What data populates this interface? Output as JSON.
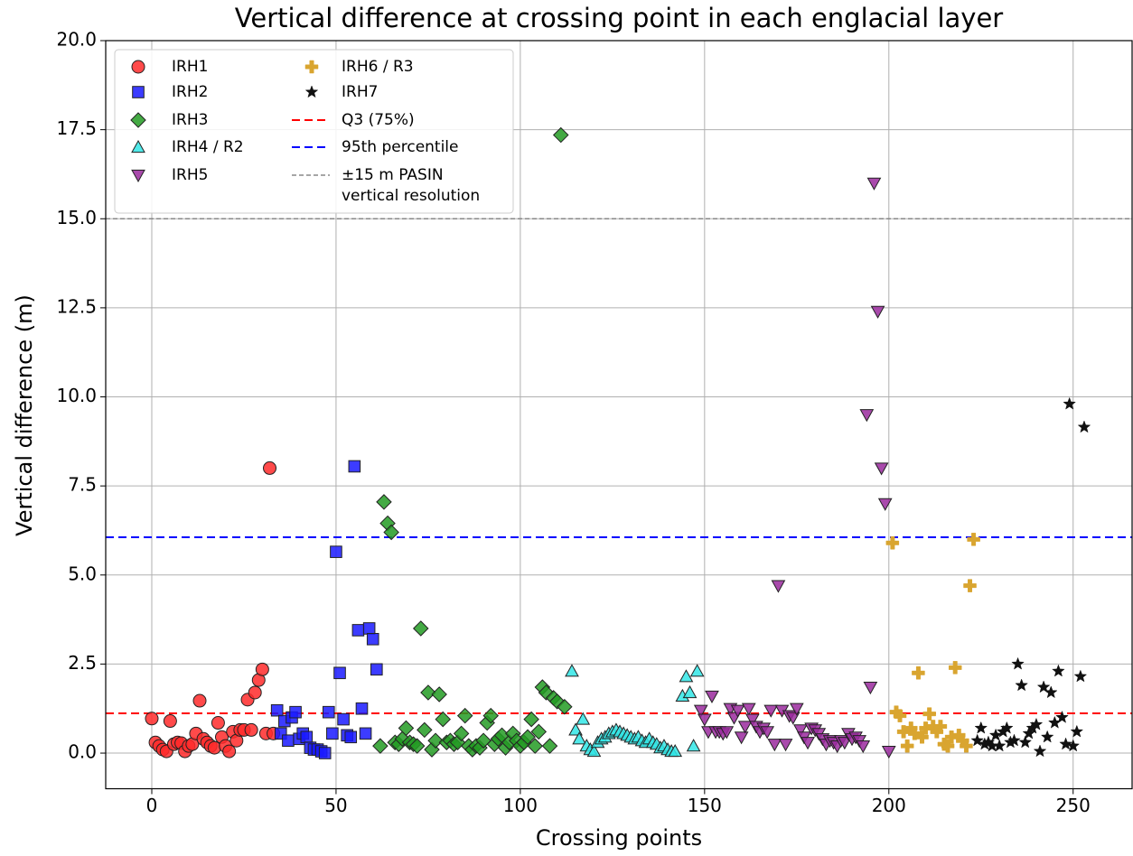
{
  "chart_data": {
    "type": "scatter",
    "title": "Vertical difference at crossing point in each englacial layer",
    "x_label": "Crossing points",
    "y_label": "Vertical difference (m)",
    "xlim": [
      -12.5,
      266
    ],
    "ylim": [
      -1,
      20
    ],
    "xticks": [
      0,
      50,
      100,
      150,
      200,
      250
    ],
    "yticks": [
      {
        "value": 0,
        "label": "0.0"
      },
      2.5,
      {
        "value": 5,
        "label": "5.0"
      },
      7.5,
      {
        "value": 10,
        "label": "10.0"
      },
      12.5,
      {
        "value": 15,
        "label": "15.0"
      },
      17.5,
      {
        "value": 20,
        "label": "20.0"
      }
    ],
    "grid": true,
    "legend": "upper left",
    "series": [
      {
        "name": "IRH1",
        "color": "#ff2a2a",
        "marker": "circle",
        "x": [
          0,
          1,
          2,
          3,
          4,
          5,
          6,
          7,
          8,
          9,
          10,
          11,
          12,
          13,
          14,
          15,
          16,
          17,
          18,
          19,
          20,
          21,
          22,
          23,
          24,
          25,
          26,
          27,
          28,
          29,
          30,
          31,
          32,
          33
        ],
        "values": [
          0.97,
          0.3,
          0.2,
          0.1,
          0.05,
          0.9,
          0.25,
          0.3,
          0.28,
          0.05,
          0.2,
          0.25,
          0.55,
          1.47,
          0.4,
          0.3,
          0.2,
          0.15,
          0.85,
          0.45,
          0.2,
          0.05,
          0.6,
          0.35,
          0.65,
          0.65,
          1.5,
          0.65,
          1.7,
          2.05,
          2.35,
          0.55,
          8.0,
          0.55
        ]
      },
      {
        "name": "IRH2",
        "color": "#1a1aff",
        "marker": "square",
        "x": [
          34,
          35,
          36,
          37,
          38,
          39,
          40,
          41,
          42,
          43,
          44,
          45,
          46,
          47,
          48,
          49,
          50,
          51,
          52,
          53,
          54,
          55,
          56,
          57,
          58,
          59,
          60,
          61
        ],
        "values": [
          1.2,
          0.55,
          0.9,
          0.35,
          1.0,
          1.15,
          0.4,
          0.55,
          0.45,
          0.15,
          0.1,
          0.1,
          0.05,
          0.0,
          1.15,
          0.55,
          5.65,
          2.25,
          0.95,
          0.5,
          0.45,
          8.05,
          3.45,
          1.25,
          0.55,
          3.5,
          3.2,
          2.35
        ]
      },
      {
        "name": "IRH3",
        "color": "#239b23",
        "marker": "diamond",
        "x": [
          62,
          63,
          64,
          65,
          66,
          67,
          68,
          69,
          70,
          71,
          72,
          73,
          74,
          75,
          76,
          77,
          78,
          79,
          80,
          81,
          82,
          83,
          84,
          85,
          86,
          87,
          88,
          89,
          90,
          91,
          92,
          93,
          94,
          95,
          96,
          97,
          98,
          99,
          100,
          101,
          102,
          103,
          104,
          105,
          106,
          107,
          108,
          109,
          110,
          111,
          112
        ],
        "values": [
          0.2,
          7.05,
          6.45,
          6.2,
          0.3,
          0.25,
          0.4,
          0.7,
          0.3,
          0.25,
          0.2,
          3.5,
          0.65,
          1.7,
          0.1,
          0.35,
          1.65,
          0.95,
          0.3,
          0.35,
          0.25,
          0.3,
          0.55,
          1.05,
          0.2,
          0.1,
          0.2,
          0.15,
          0.35,
          0.85,
          1.05,
          0.25,
          0.4,
          0.5,
          0.15,
          0.3,
          0.55,
          0.35,
          0.2,
          0.3,
          0.45,
          0.95,
          0.2,
          0.6,
          1.85,
          1.7,
          0.2,
          1.55,
          1.45,
          17.35,
          1.3
        ]
      },
      {
        "name": "IRH4 / R2",
        "color": "#33e6e6",
        "marker": "triangle-up",
        "x": [
          114,
          115,
          116,
          117,
          118,
          119,
          120,
          121,
          122,
          123,
          124,
          125,
          126,
          127,
          128,
          129,
          130,
          131,
          132,
          133,
          134,
          135,
          136,
          137,
          138,
          139,
          140,
          141,
          142,
          144,
          145,
          146,
          147,
          148
        ],
        "values": [
          2.3,
          0.65,
          0.4,
          0.95,
          0.2,
          0.1,
          0.05,
          0.3,
          0.4,
          0.45,
          0.55,
          0.6,
          0.65,
          0.6,
          0.55,
          0.5,
          0.45,
          0.4,
          0.45,
          0.35,
          0.3,
          0.4,
          0.3,
          0.25,
          0.15,
          0.2,
          0.1,
          0.05,
          0.05,
          1.6,
          2.15,
          1.7,
          0.2,
          2.3
        ]
      },
      {
        "name": "IRH5",
        "color": "#9a2a9e",
        "marker": "triangle-down",
        "x": [
          149,
          150,
          151,
          152,
          153,
          154,
          155,
          156,
          157,
          158,
          159,
          160,
          161,
          162,
          163,
          164,
          165,
          166,
          167,
          168,
          169,
          170,
          171,
          172,
          173,
          174,
          175,
          176,
          177,
          178,
          179,
          180,
          181,
          182,
          183,
          184,
          185,
          186,
          187,
          188,
          189,
          190,
          191,
          192,
          193,
          194,
          195,
          196,
          197,
          198,
          199,
          200
        ],
        "values": [
          1.2,
          0.95,
          0.6,
          1.6,
          0.6,
          0.6,
          0.55,
          0.6,
          1.25,
          1.0,
          1.2,
          0.45,
          0.75,
          1.25,
          0.95,
          0.75,
          0.6,
          0.7,
          0.6,
          1.2,
          0.25,
          4.7,
          1.2,
          0.25,
          1.05,
          1.0,
          1.25,
          0.65,
          0.45,
          0.3,
          0.7,
          0.65,
          0.55,
          0.4,
          0.25,
          0.35,
          0.3,
          0.2,
          0.35,
          0.3,
          0.55,
          0.4,
          0.45,
          0.35,
          0.2,
          9.5,
          1.85,
          16.0,
          12.4,
          8.0,
          7.0,
          0.05
        ]
      },
      {
        "name": "IRH6 / R3",
        "color": "#d9a530",
        "marker": "plus",
        "x": [
          201,
          202,
          203,
          204,
          205,
          206,
          207,
          208,
          209,
          210,
          211,
          212,
          213,
          214,
          215,
          216,
          217,
          218,
          219,
          220,
          221,
          222,
          223
        ],
        "values": [
          5.9,
          1.15,
          1.05,
          0.6,
          0.2,
          0.7,
          0.55,
          2.25,
          0.45,
          0.7,
          1.1,
          0.75,
          0.6,
          0.75,
          0.25,
          0.2,
          0.45,
          2.4,
          0.5,
          0.35,
          0.2,
          4.7,
          6.0
        ]
      },
      {
        "name": "IRH7",
        "color": "#111111",
        "marker": "star",
        "x": [
          224,
          225,
          226,
          227,
          228,
          229,
          230,
          231,
          232,
          233,
          234,
          235,
          236,
          237,
          238,
          239,
          240,
          241,
          242,
          243,
          244,
          245,
          246,
          247,
          248,
          249,
          250,
          251,
          252,
          253
        ],
        "values": [
          0.35,
          0.7,
          0.25,
          0.3,
          0.2,
          0.5,
          0.2,
          0.6,
          0.7,
          0.3,
          0.35,
          2.5,
          1.9,
          0.3,
          0.55,
          0.7,
          0.8,
          0.05,
          1.85,
          0.45,
          1.7,
          0.85,
          2.3,
          1.0,
          0.25,
          9.8,
          0.2,
          0.6,
          2.15,
          9.15
        ]
      }
    ],
    "hlines": [
      {
        "name": "Q3 (75%)",
        "color": "#ff0000",
        "value": 1.115,
        "dash": "9,5"
      },
      {
        "name": "95th percentile",
        "color": "#0000ff",
        "value": 6.06,
        "dash": "9,5"
      },
      {
        "name": [
          "±15 m PASIN",
          "vertical resolution"
        ],
        "color": "#888888",
        "value": 15,
        "dash": "5,3"
      }
    ]
  }
}
